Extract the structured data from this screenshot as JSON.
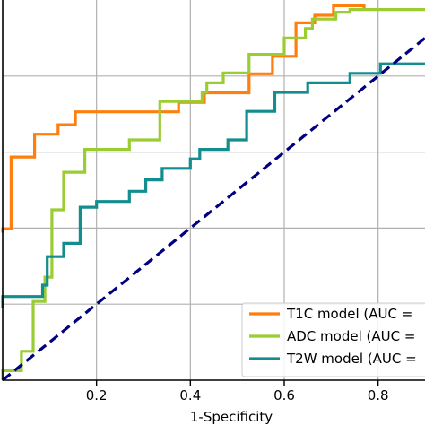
{
  "chart_data": {
    "type": "line",
    "xlabel": "1-Specificity",
    "ylabel": "",
    "title": "",
    "xlim": [
      0.0,
      0.9
    ],
    "ylim": [
      0.0,
      1.0
    ],
    "x_ticks": [
      "0.2",
      "0.4",
      "0.6",
      "0.8"
    ],
    "x_tick_values": [
      0.2,
      0.4,
      0.6,
      0.8
    ],
    "grid": true,
    "legend_position": "bottom-right",
    "series": [
      {
        "name": "T1C model (AUC =",
        "color": "#ff7f0e",
        "x": [
          0.0,
          0.0,
          0.018,
          0.018,
          0.068,
          0.068,
          0.118,
          0.118,
          0.155,
          0.155,
          0.205,
          0.205,
          0.375,
          0.375,
          0.43,
          0.43,
          0.525,
          0.525,
          0.575,
          0.575,
          0.625,
          0.625,
          0.665,
          0.665,
          0.705,
          0.705,
          0.77,
          0.77
        ],
        "y": [
          0.388,
          0.398,
          0.398,
          0.587,
          0.587,
          0.647,
          0.647,
          0.672,
          0.672,
          0.706,
          0.706,
          0.706,
          0.706,
          0.731,
          0.731,
          0.756,
          0.756,
          0.806,
          0.806,
          0.852,
          0.852,
          0.94,
          0.94,
          0.96,
          0.96,
          0.985,
          0.985,
          0.975
        ]
      },
      {
        "name": "ADC model (AUC =",
        "color": "#9acd32",
        "x": [
          0.0,
          0.0,
          0.04,
          0.04,
          0.065,
          0.065,
          0.09,
          0.09,
          0.105,
          0.105,
          0.13,
          0.13,
          0.175,
          0.175,
          0.215,
          0.215,
          0.27,
          0.27,
          0.335,
          0.335,
          0.39,
          0.39,
          0.425,
          0.425,
          0.435,
          0.435,
          0.47,
          0.47,
          0.525,
          0.525,
          0.56,
          0.56,
          0.6,
          0.6,
          0.645,
          0.645,
          0.66,
          0.66,
          0.71,
          0.71,
          0.74,
          0.74,
          0.9
        ],
        "y": [
          0.0,
          0.025,
          0.025,
          0.076,
          0.076,
          0.207,
          0.207,
          0.271,
          0.271,
          0.448,
          0.448,
          0.547,
          0.547,
          0.607,
          0.607,
          0.607,
          0.607,
          0.632,
          0.632,
          0.733,
          0.733,
          0.733,
          0.733,
          0.758,
          0.758,
          0.782,
          0.782,
          0.808,
          0.808,
          0.857,
          0.857,
          0.857,
          0.857,
          0.9,
          0.9,
          0.925,
          0.925,
          0.95,
          0.95,
          0.968,
          0.968,
          0.975,
          0.975
        ]
      },
      {
        "name": "T2W model (AUC =",
        "color": "#138d8d",
        "x": [
          0.0,
          0.0,
          0.045,
          0.045,
          0.085,
          0.085,
          0.095,
          0.095,
          0.13,
          0.13,
          0.165,
          0.165,
          0.2,
          0.2,
          0.27,
          0.27,
          0.305,
          0.305,
          0.34,
          0.34,
          0.4,
          0.4,
          0.42,
          0.42,
          0.48,
          0.48,
          0.52,
          0.52,
          0.58,
          0.58,
          0.65,
          0.65,
          0.74,
          0.74,
          0.805,
          0.805,
          0.9
        ],
        "y": [
          0.19,
          0.22,
          0.22,
          0.22,
          0.22,
          0.25,
          0.25,
          0.325,
          0.325,
          0.36,
          0.36,
          0.455,
          0.455,
          0.47,
          0.47,
          0.497,
          0.497,
          0.527,
          0.527,
          0.557,
          0.557,
          0.582,
          0.582,
          0.607,
          0.607,
          0.632,
          0.632,
          0.707,
          0.707,
          0.757,
          0.757,
          0.782,
          0.782,
          0.807,
          0.807,
          0.832,
          0.832
        ]
      },
      {
        "name": "",
        "color": "#000080",
        "dashed": true,
        "x": [
          0.0,
          0.9
        ],
        "y": [
          0.0,
          0.9
        ]
      }
    ]
  }
}
